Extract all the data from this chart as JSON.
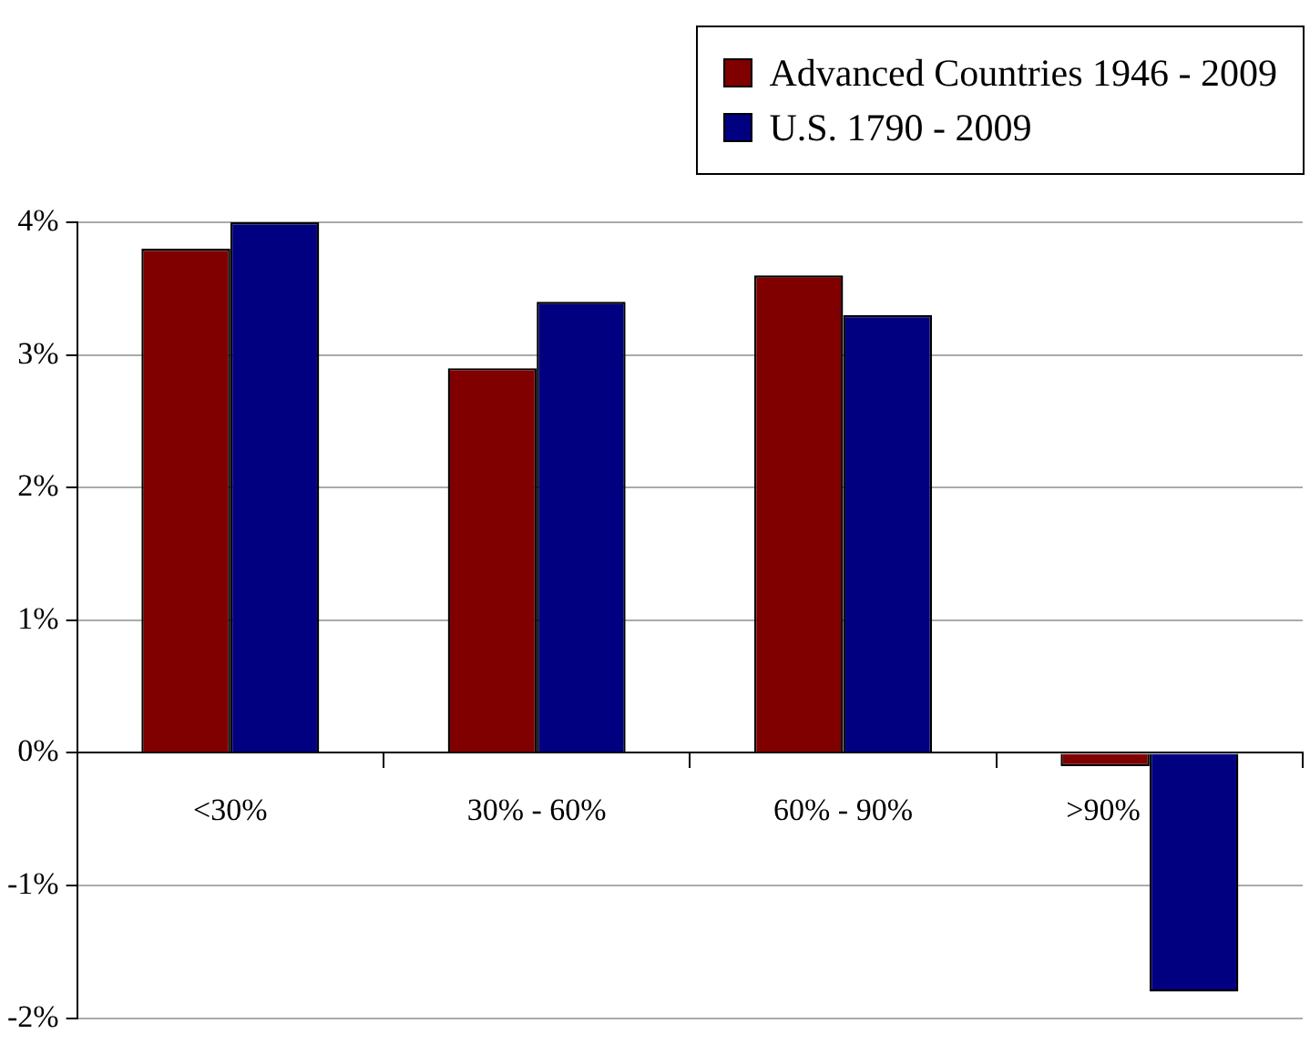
{
  "chart_data": {
    "type": "bar",
    "categories": [
      "<30%",
      "30% - 60%",
      "60% - 90%",
      ">90%"
    ],
    "series": [
      {
        "name": "Advanced Countries 1946 - 2009",
        "color": "#800000",
        "values": [
          3.8,
          2.9,
          3.6,
          -0.1
        ]
      },
      {
        "name": "U.S. 1790 - 2009",
        "color": "#000080",
        "values": [
          4.0,
          3.4,
          3.3,
          -1.8
        ]
      }
    ],
    "ylim": [
      -2,
      4
    ],
    "yticks": [
      {
        "value": -2,
        "label": "-2%"
      },
      {
        "value": -1,
        "label": "-1%"
      },
      {
        "value": 0,
        "label": "0%"
      },
      {
        "value": 1,
        "label": "1%"
      },
      {
        "value": 2,
        "label": "2%"
      },
      {
        "value": 3,
        "label": "3%"
      },
      {
        "value": 4,
        "label": "4%"
      }
    ],
    "grid": "y",
    "legend": "top right"
  }
}
